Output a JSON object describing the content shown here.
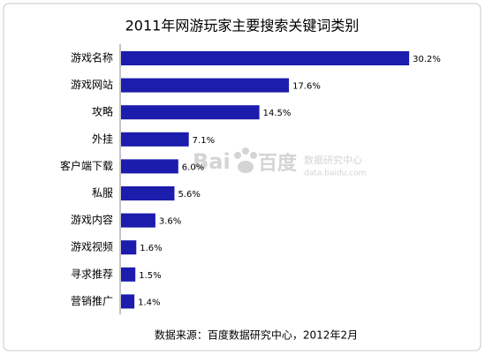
{
  "chart_data": {
    "type": "bar",
    "orientation": "horizontal",
    "title": "2011年网游玩家主要搜索关键词类别",
    "categories": [
      "游戏名称",
      "游戏网站",
      "攻略",
      "外挂",
      "客户端下载",
      "私服",
      "游戏内容",
      "游戏视频",
      "寻求推荐",
      "营销推广"
    ],
    "values": [
      30.2,
      17.6,
      14.5,
      7.1,
      6.0,
      5.6,
      3.6,
      1.6,
      1.5,
      1.4
    ],
    "value_labels": [
      "30.2%",
      "17.6%",
      "14.5%",
      "7.1%",
      "6.0%",
      "5.6%",
      "3.6%",
      "1.6%",
      "1.5%",
      "1.4%"
    ],
    "color": "#1c1cad",
    "source": "数据来源：百度数据研究中心，2012年2月"
  },
  "watermark": {
    "logo_left": "Bai",
    "logo_right": "百度",
    "name": "数据研究中心",
    "url": "data.baidu.com"
  }
}
